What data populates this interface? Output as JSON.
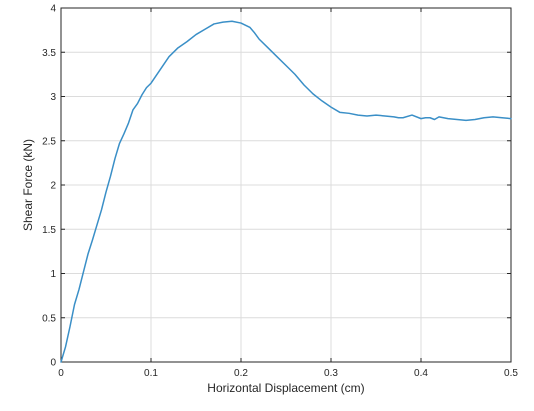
{
  "chart_data": {
    "type": "line",
    "xlabel": "Horizontal Displacement (cm)",
    "ylabel": "Shear Force (kN)",
    "xlim": [
      0,
      0.5
    ],
    "ylim": [
      0,
      4
    ],
    "x_ticks": [
      0,
      0.1,
      0.2,
      0.3,
      0.4,
      0.5
    ],
    "x_tick_labels": [
      "0",
      "0.1",
      "0.2",
      "0.3",
      "0.4",
      "0.5"
    ],
    "y_ticks": [
      0,
      0.5,
      1,
      1.5,
      2,
      2.5,
      3,
      3.5,
      4
    ],
    "y_tick_labels": [
      "0",
      "0.5",
      "1",
      "1.5",
      "2",
      "2.5",
      "3",
      "3.5",
      "4"
    ],
    "grid": true,
    "line_color": "#3a8fc7",
    "series": [
      {
        "x": [
          0,
          0.005,
          0.01,
          0.015,
          0.02,
          0.025,
          0.03,
          0.035,
          0.04,
          0.045,
          0.05,
          0.055,
          0.06,
          0.065,
          0.07,
          0.075,
          0.08,
          0.085,
          0.09,
          0.095,
          0.1,
          0.11,
          0.12,
          0.13,
          0.14,
          0.15,
          0.16,
          0.17,
          0.18,
          0.19,
          0.2,
          0.21,
          0.215,
          0.22,
          0.23,
          0.24,
          0.25,
          0.26,
          0.27,
          0.28,
          0.29,
          0.3,
          0.31,
          0.32,
          0.33,
          0.34,
          0.35,
          0.36,
          0.37,
          0.375,
          0.38,
          0.39,
          0.4,
          0.405,
          0.41,
          0.415,
          0.42,
          0.43,
          0.44,
          0.45,
          0.46,
          0.47,
          0.48,
          0.49,
          0.5
        ],
        "y": [
          0,
          0.17,
          0.4,
          0.65,
          0.82,
          1.02,
          1.22,
          1.38,
          1.55,
          1.72,
          1.92,
          2.1,
          2.3,
          2.47,
          2.58,
          2.7,
          2.85,
          2.92,
          3.02,
          3.1,
          3.15,
          3.3,
          3.45,
          3.55,
          3.62,
          3.7,
          3.76,
          3.82,
          3.84,
          3.85,
          3.83,
          3.78,
          3.72,
          3.65,
          3.55,
          3.45,
          3.35,
          3.25,
          3.13,
          3.03,
          2.95,
          2.88,
          2.82,
          2.81,
          2.79,
          2.78,
          2.79,
          2.78,
          2.77,
          2.76,
          2.76,
          2.79,
          2.75,
          2.76,
          2.76,
          2.74,
          2.77,
          2.75,
          2.74,
          2.73,
          2.74,
          2.76,
          2.77,
          2.76,
          2.75
        ]
      }
    ]
  }
}
